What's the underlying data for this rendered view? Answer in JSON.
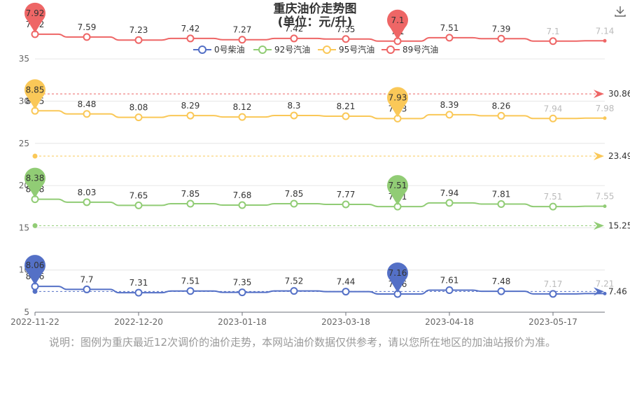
{
  "title": {
    "line1": "重庆油价走势图",
    "line2": "(单位：元/升)"
  },
  "download_icon": "download-icon",
  "note": "说明：图例为重庆最近12次调价的油价走势，本网站油价数据仅供参考，请以您所在地区的加油站报价为准。",
  "chart_data": {
    "type": "line",
    "title": "重庆油价走势图",
    "subtitle": "(单位：元/升)",
    "xlabel": "",
    "ylabel": "",
    "x_tick_labels": [
      "2022-11-22",
      "2022-12-20",
      "2023-01-18",
      "2023-03-18",
      "2023-04-18",
      "2023-05-17"
    ],
    "x_tick_indices": [
      0,
      2,
      4,
      6,
      8,
      10
    ],
    "y_ticks": [
      5,
      10,
      15,
      20,
      25,
      30,
      35
    ],
    "ylim": [
      5,
      37
    ],
    "grid": true,
    "legend_position": "top",
    "series": [
      {
        "name": "0号柴油",
        "color": "#5470c6",
        "offset": 0,
        "values": [
          8.06,
          7.7,
          7.31,
          7.51,
          7.35,
          7.52,
          7.44,
          7.16,
          7.61,
          7.48,
          7.17,
          7.21
        ],
        "average": 7.46,
        "max_label": "8.06",
        "min_label": "7.16"
      },
      {
        "name": "92号汽油",
        "color": "#91cc75",
        "offset": 10,
        "values": [
          8.38,
          8.03,
          7.65,
          7.85,
          7.68,
          7.85,
          7.77,
          7.51,
          7.94,
          7.81,
          7.51,
          7.55
        ],
        "average": 15.25,
        "max_label": "8.38",
        "min_label": "7.51"
      },
      {
        "name": "95号汽油",
        "color": "#fac858",
        "offset": 20,
        "values": [
          8.85,
          8.48,
          8.08,
          8.29,
          8.12,
          8.3,
          8.21,
          7.93,
          8.39,
          8.26,
          7.94,
          7.98
        ],
        "average": 23.49,
        "max_label": "8.85",
        "min_label": "7.93"
      },
      {
        "name": "89号汽油",
        "color": "#ee6666",
        "offset": 30,
        "values": [
          7.92,
          7.59,
          7.23,
          7.42,
          7.27,
          7.42,
          7.35,
          7.1,
          7.51,
          7.39,
          7.1,
          7.14
        ],
        "average": 30.86,
        "max_label": "7.92",
        "min_label": "7.1"
      }
    ]
  }
}
